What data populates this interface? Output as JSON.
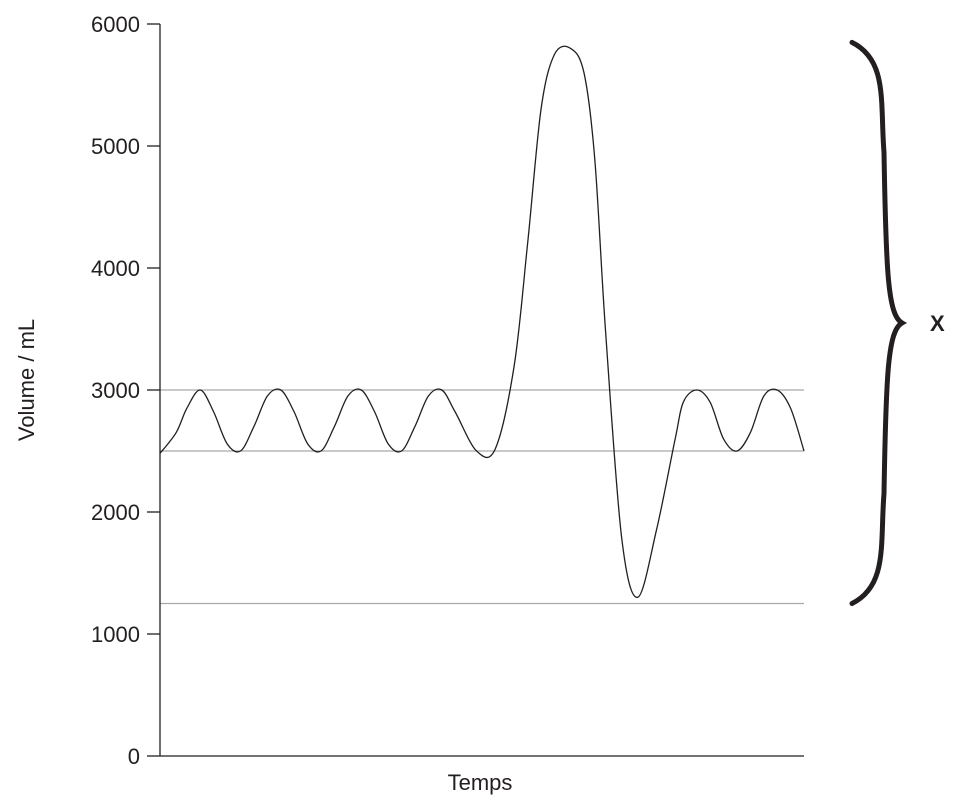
{
  "chart_data": {
    "type": "line",
    "title": "",
    "xlabel": "Temps",
    "ylabel": "Volume / mL",
    "ylim": [
      0,
      6000
    ],
    "yticks": [
      0,
      1000,
      2000,
      3000,
      4000,
      5000,
      6000
    ],
    "ytick_labels": [
      "0",
      "1000",
      "2000",
      "3000",
      "4000",
      "5000",
      "6000"
    ],
    "grid": false,
    "reference_lines": [
      3000,
      2500,
      1250
    ],
    "series": [
      {
        "x": [
          0,
          0.6,
          1.0,
          1.5,
          2.0,
          2.5,
          3.0,
          3.5,
          4.0,
          4.5,
          5.0,
          5.5,
          6.0,
          6.5,
          7.0,
          7.5,
          8.0,
          8.5,
          9.0,
          9.5,
          10.0,
          10.5,
          11.0,
          11.8,
          12.5,
          13.2,
          13.7,
          14.2,
          14.7,
          15.3,
          15.8,
          16.2,
          16.6,
          17.2,
          17.8,
          18.5,
          19.2,
          19.5,
          20.0,
          20.5,
          21.0,
          21.5,
          22.0,
          22.5,
          23.0,
          23.5,
          24.0
        ],
        "y": [
          2480,
          2650,
          2850,
          3000,
          2820,
          2560,
          2500,
          2700,
          2950,
          3000,
          2820,
          2560,
          2500,
          2700,
          2950,
          3000,
          2820,
          2560,
          2500,
          2700,
          2950,
          3000,
          2820,
          2500,
          2520,
          3200,
          4200,
          5300,
          5750,
          5800,
          5600,
          4900,
          3500,
          1800,
          1300,
          1850,
          2600,
          2900,
          3000,
          2900,
          2600,
          2500,
          2650,
          2950,
          3000,
          2850,
          2500
        ]
      }
    ],
    "annotations": [
      {
        "text": "X",
        "brace_from": 1250,
        "brace_to": 5800
      }
    ]
  }
}
